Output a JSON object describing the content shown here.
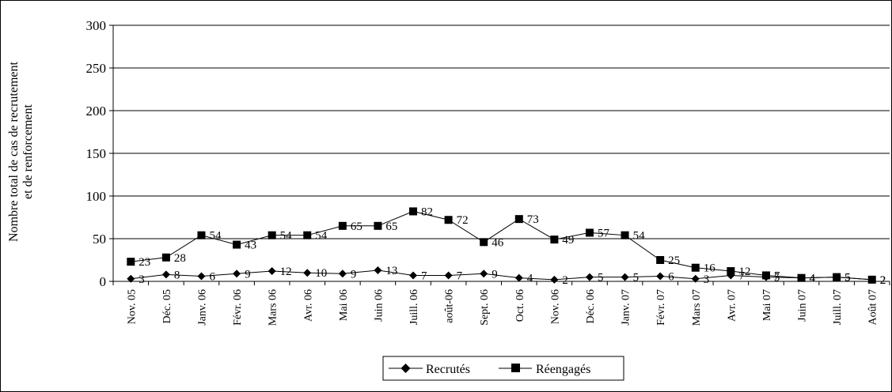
{
  "chart_data": {
    "type": "line",
    "ylabel_line1": "Nombre total de cas de recrutement",
    "ylabel_line2": "et de renforcement",
    "ylim": [
      0,
      300
    ],
    "yticks": [
      0,
      50,
      100,
      150,
      200,
      250,
      300
    ],
    "grid": true,
    "legend_position": "bottom",
    "categories": [
      "Nov. 05",
      "Déc. 05",
      "Janv. 06",
      "Févr. 06",
      "Mars 06",
      "Avr. 06",
      "Mai 06",
      "Juin 06",
      "Juill. 06",
      "août-06",
      "Sept. 06",
      "Oct. 06",
      "Nov. 06",
      "Déc. 06",
      "Janv. 07",
      "Févr. 07",
      "Mars 07",
      "Avr. 07",
      "Mai 07",
      "Juin 07",
      "Juill. 07",
      "Août 07"
    ],
    "series": [
      {
        "name": "Recrutés",
        "marker": "diamond",
        "values": [
          3,
          8,
          6,
          9,
          12,
          10,
          9,
          13,
          7,
          7,
          9,
          4,
          2,
          5,
          5,
          6,
          3,
          7,
          5,
          4,
          5,
          2
        ]
      },
      {
        "name": "Réengagés",
        "marker": "square",
        "values": [
          23,
          28,
          54,
          43,
          54,
          54,
          65,
          65,
          82,
          72,
          46,
          73,
          49,
          57,
          54,
          25,
          16,
          12,
          7,
          4,
          5,
          2
        ]
      }
    ]
  }
}
